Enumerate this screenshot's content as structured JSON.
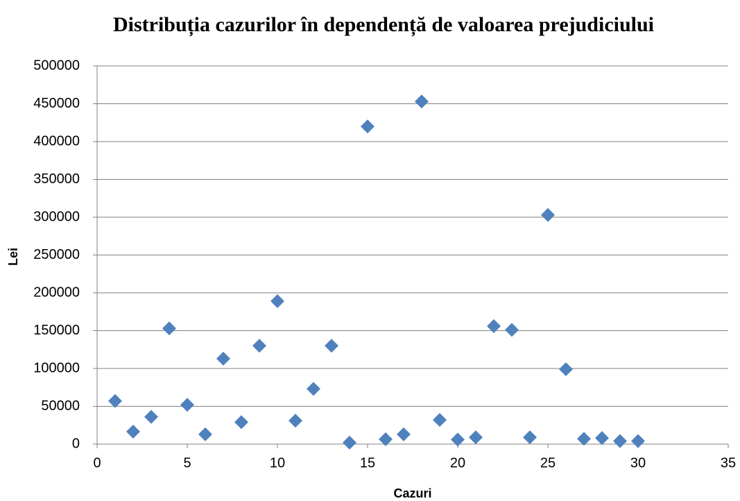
{
  "chart_data": {
    "type": "scatter",
    "title": "Distribuția cazurilor în dependență de valoarea prejudiciului",
    "x_label": "Cazuri",
    "y_label": "Lei",
    "series": [
      {
        "name": "Lei",
        "color": "#4f81bd",
        "x": [
          1,
          2,
          3,
          4,
          5,
          6,
          7,
          8,
          9,
          10,
          11,
          12,
          13,
          14,
          15,
          16,
          17,
          18,
          19,
          20,
          21,
          22,
          23,
          24,
          25,
          26,
          27,
          28,
          29,
          30
        ],
        "values": [
          57000,
          16500,
          36000,
          153000,
          52000,
          13000,
          113000,
          29000,
          130000,
          189000,
          31000,
          73000,
          130000,
          2000,
          420000,
          6400,
          13000,
          453000,
          32000,
          6000,
          9000,
          156000,
          151000,
          9000,
          303000,
          99000,
          7000,
          8000,
          4000,
          4000
        ]
      }
    ],
    "xlim": [
      0,
      35
    ],
    "xticks": [
      0,
      5,
      10,
      15,
      20,
      25,
      30,
      35
    ],
    "ylim": [
      0,
      500000
    ],
    "yticks": [
      0,
      50000,
      100000,
      150000,
      200000,
      250000,
      300000,
      350000,
      400000,
      450000,
      500000
    ],
    "grid": true
  }
}
